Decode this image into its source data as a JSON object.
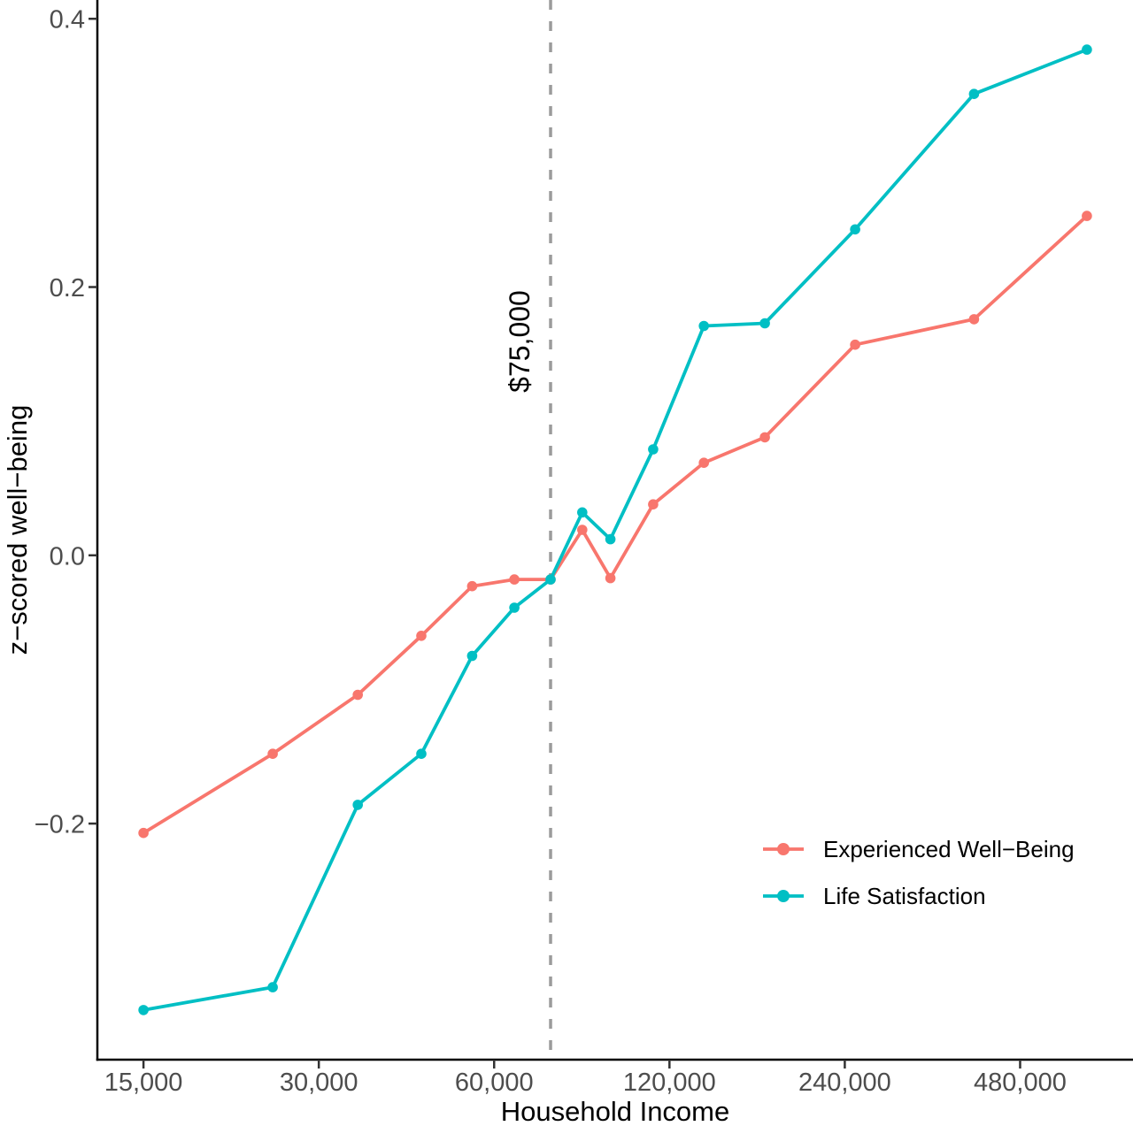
{
  "chart_data": {
    "type": "line",
    "title": "",
    "xlabel": "Household Income",
    "ylabel": "z−scored well−being",
    "x_scale": "log2",
    "xlim": [
      12500,
      750000
    ],
    "ylim": [
      -0.376,
      0.414
    ],
    "grid": false,
    "legend_position": "bottom-right",
    "x": [
      15000,
      25000,
      35000,
      45000,
      55000,
      65000,
      75000,
      85000,
      95000,
      112500,
      137500,
      175000,
      250000,
      400000,
      625000
    ],
    "series": [
      {
        "name": "Experienced Well−Being",
        "color": "#F8766D",
        "values": [
          -0.207,
          -0.148,
          -0.104,
          -0.06,
          -0.023,
          -0.018,
          -0.018,
          0.019,
          -0.017,
          0.038,
          0.069,
          0.088,
          0.157,
          0.176,
          0.253
        ]
      },
      {
        "name": "Life Satisfaction",
        "color": "#00BFC4",
        "values": [
          -0.339,
          -0.322,
          -0.186,
          -0.148,
          -0.075,
          -0.039,
          -0.018,
          0.032,
          0.012,
          0.079,
          0.171,
          0.173,
          0.243,
          0.344,
          0.377
        ]
      }
    ],
    "x_ticks": {
      "values": [
        15000,
        30000,
        60000,
        120000,
        240000,
        480000
      ],
      "labels": [
        "15,000",
        "30,000",
        "60,000",
        "120,000",
        "240,000",
        "480,000"
      ]
    },
    "y_ticks": {
      "values": [
        0.4,
        0.2,
        0.0,
        -0.2
      ],
      "labels": [
        "0.4",
        "0.2",
        "0.0",
        "−0.2"
      ]
    },
    "annotation": {
      "x": 75000,
      "label": "$75,000",
      "line_style": "dashed",
      "line_color": "#9B9B9B"
    }
  },
  "colors": {
    "background": "#FFFFFF",
    "axis": "#000000",
    "tick": "#333333",
    "tick_label": "#4D4D4D"
  }
}
